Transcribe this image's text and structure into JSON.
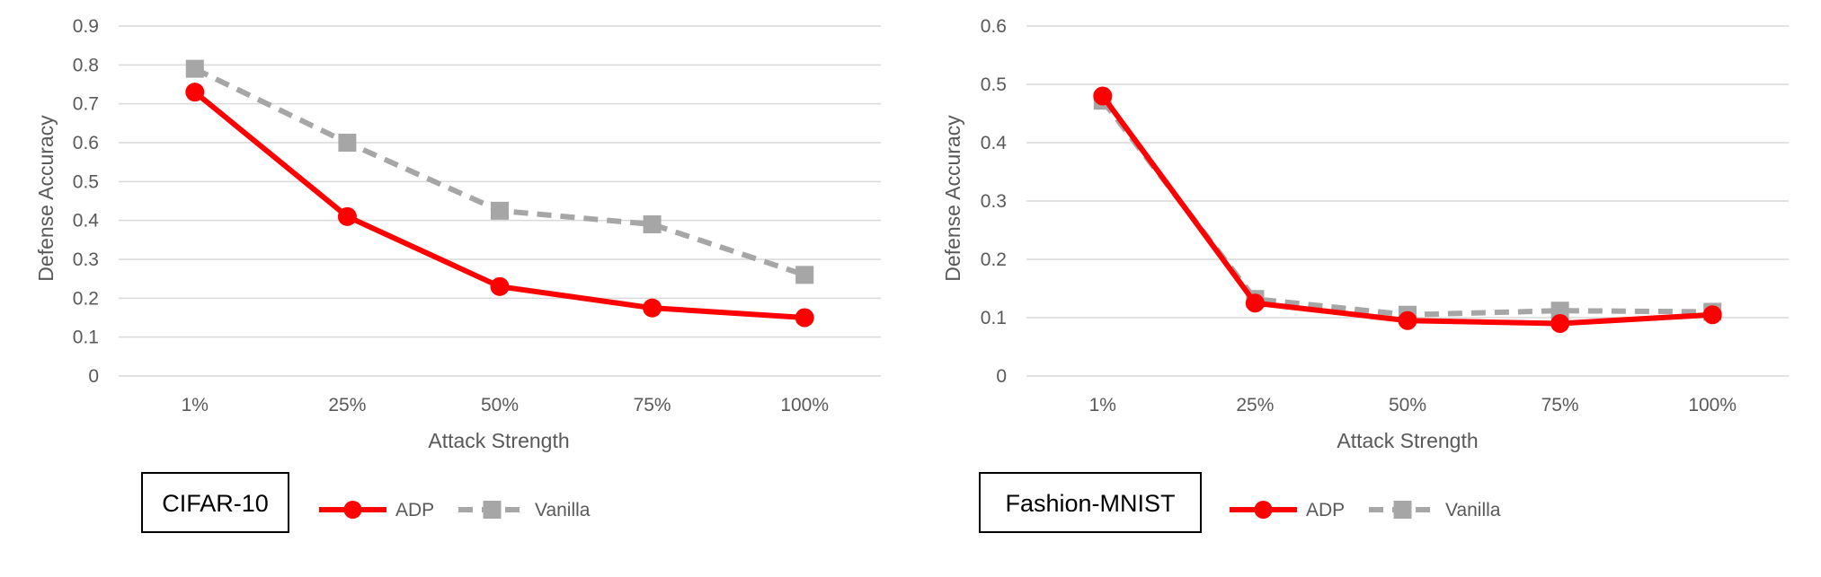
{
  "colors": {
    "adp": "#ff0000",
    "vanilla": "#a6a6a6",
    "grid": "#d9d9d9",
    "text": "#595959"
  },
  "chart_data": [
    {
      "type": "line",
      "label_box": "CIFAR-10",
      "xlabel": "Attack Strength",
      "ylabel": "Defense Accuracy",
      "categories": [
        "1%",
        "25%",
        "50%",
        "75%",
        "100%"
      ],
      "ylim": [
        0,
        0.9
      ],
      "yticks": [
        "0",
        "0.1",
        "0.2",
        "0.3",
        "0.4",
        "0.5",
        "0.6",
        "0.7",
        "0.8",
        "0.9"
      ],
      "grid": true,
      "legend_position": "bottom",
      "series": [
        {
          "name": "ADP",
          "style": "solid",
          "marker": "circle",
          "values": [
            0.73,
            0.41,
            0.23,
            0.175,
            0.15
          ]
        },
        {
          "name": "Vanilla",
          "style": "dashed",
          "marker": "square",
          "values": [
            0.79,
            0.6,
            0.425,
            0.39,
            0.26
          ]
        }
      ]
    },
    {
      "type": "line",
      "label_box": "Fashion-MNIST",
      "xlabel": "Attack Strength",
      "ylabel": "Defense Accuracy",
      "categories": [
        "1%",
        "25%",
        "50%",
        "75%",
        "100%"
      ],
      "ylim": [
        0,
        0.6
      ],
      "yticks": [
        "0",
        "0.1",
        "0.2",
        "0.3",
        "0.4",
        "0.5",
        "0.6"
      ],
      "grid": true,
      "legend_position": "bottom",
      "series": [
        {
          "name": "ADP",
          "style": "solid",
          "marker": "circle",
          "values": [
            0.48,
            0.125,
            0.095,
            0.09,
            0.105
          ]
        },
        {
          "name": "Vanilla",
          "style": "dashed",
          "marker": "square",
          "values": [
            0.472,
            0.132,
            0.105,
            0.112,
            0.11
          ]
        }
      ]
    }
  ]
}
